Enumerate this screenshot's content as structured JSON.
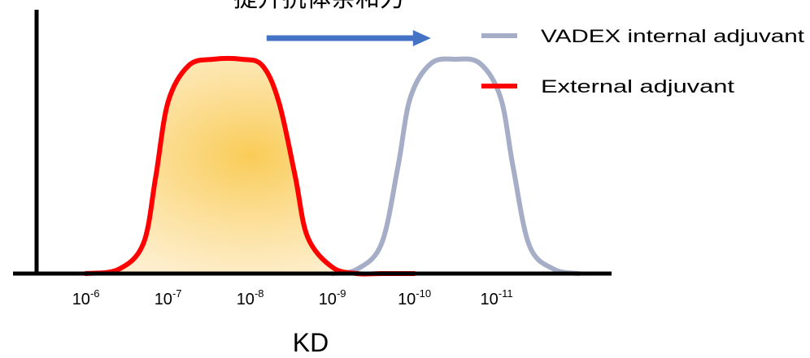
{
  "chart_data": {
    "type": "area",
    "title": "提升抗体亲和力",
    "xlabel": "KD",
    "ylabel": "",
    "x_ticks": [
      {
        "base": "10",
        "exp": "-6"
      },
      {
        "base": "10",
        "exp": "-7"
      },
      {
        "base": "10",
        "exp": "-8"
      },
      {
        "base": "10",
        "exp": "-9"
      },
      {
        "base": "10",
        "exp": "-10"
      },
      {
        "base": "10",
        "exp": "-11"
      }
    ],
    "x_log10_values": [
      -6,
      -7,
      -8,
      -9,
      -10,
      -11
    ],
    "xlim_log10": [
      -5.4,
      -12.4
    ],
    "ylim": [
      0,
      1
    ],
    "legend_position": "top-right",
    "shift_arrow": {
      "from_log10": -8.2,
      "to_log10": -10.2,
      "color": "#4472c4"
    },
    "series": [
      {
        "name": "VADEX internal adjuvant",
        "color": "#a5aec6",
        "filled": false,
        "x_log10": [
          -9.0,
          -9.3,
          -9.6,
          -9.8,
          -9.95,
          -10.2,
          -10.5,
          -10.8,
          -11.05,
          -11.2,
          -11.4,
          -11.7,
          -12.0
        ],
        "y": [
          0.0,
          0.02,
          0.14,
          0.5,
          0.82,
          0.98,
          1.0,
          0.98,
          0.82,
          0.5,
          0.13,
          0.02,
          0.0
        ]
      },
      {
        "name": "External adjuvant",
        "color": "#ff0000",
        "filled": true,
        "fill_color": "#f9c94e",
        "x_log10": [
          -6.0,
          -6.4,
          -6.7,
          -6.85,
          -7.0,
          -7.25,
          -7.55,
          -7.9,
          -8.15,
          -8.35,
          -8.55,
          -8.7,
          -9.0,
          -9.3,
          -9.6,
          -10.0
        ],
        "y": [
          0.0,
          0.02,
          0.14,
          0.45,
          0.8,
          0.97,
          1.0,
          1.0,
          0.97,
          0.8,
          0.45,
          0.17,
          0.03,
          0.0,
          0.0,
          0.0
        ]
      }
    ]
  }
}
